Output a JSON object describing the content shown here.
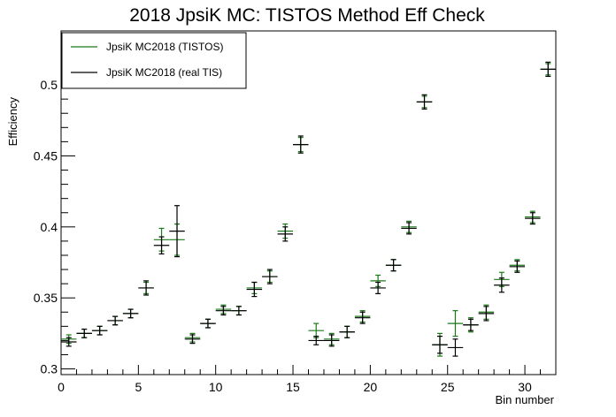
{
  "chart_data": {
    "type": "scatter",
    "title": "2018 JpsiK MC: TISTOS Method Eff Check",
    "xlabel": "Bin number",
    "ylabel": "Efficiency",
    "xlim": [
      0,
      32
    ],
    "ylim": [
      0.296,
      0.538
    ],
    "x_ticks": [
      0,
      5,
      10,
      15,
      20,
      25,
      30
    ],
    "y_ticks": [
      0.3,
      0.35,
      0.4,
      0.45,
      0.5
    ],
    "grid": false,
    "legend_position": "top-left",
    "x_error": 0.5,
    "series": [
      {
        "name": "JpsiK MC2018 (TISTOS)",
        "color": "#1a7a1a",
        "x": [
          0.5,
          1.5,
          2.5,
          3.5,
          4.5,
          5.5,
          6.5,
          7.5,
          8.5,
          9.5,
          10.5,
          11.5,
          12.5,
          13.5,
          14.5,
          15.5,
          16.5,
          17.5,
          18.5,
          19.5,
          20.5,
          21.5,
          22.5,
          23.5,
          24.5,
          25.5,
          26.5,
          27.5,
          28.5,
          29.5,
          30.5,
          31.5
        ],
        "y": [
          0.321,
          0.325,
          0.327,
          0.334,
          0.339,
          0.357,
          0.391,
          0.391,
          0.322,
          0.332,
          0.342,
          0.341,
          0.357,
          0.365,
          0.397,
          0.458,
          0.327,
          0.321,
          0.326,
          0.337,
          0.362,
          0.373,
          0.4,
          0.488,
          0.317,
          0.332,
          0.331,
          0.34,
          0.363,
          0.373,
          0.407,
          0.511
        ],
        "yerr": [
          0.003,
          0.003,
          0.003,
          0.003,
          0.003,
          0.004,
          0.008,
          0.011,
          0.003,
          0.003,
          0.003,
          0.003,
          0.004,
          0.004,
          0.005,
          0.005,
          0.005,
          0.004,
          0.004,
          0.004,
          0.004,
          0.004,
          0.004,
          0.004,
          0.008,
          0.009,
          0.005,
          0.005,
          0.005,
          0.004,
          0.004,
          0.004
        ]
      },
      {
        "name": "JpsiK MC2018 (real TIS)",
        "color": "#000000",
        "x": [
          0.5,
          1.5,
          2.5,
          3.5,
          4.5,
          5.5,
          6.5,
          7.5,
          8.5,
          9.5,
          10.5,
          11.5,
          12.5,
          13.5,
          14.5,
          15.5,
          16.5,
          17.5,
          18.5,
          19.5,
          20.5,
          21.5,
          22.5,
          23.5,
          24.5,
          25.5,
          26.5,
          27.5,
          28.5,
          29.5,
          30.5,
          31.5
        ],
        "y": [
          0.319,
          0.325,
          0.327,
          0.334,
          0.339,
          0.357,
          0.387,
          0.397,
          0.321,
          0.332,
          0.341,
          0.341,
          0.356,
          0.365,
          0.395,
          0.458,
          0.32,
          0.32,
          0.326,
          0.336,
          0.357,
          0.373,
          0.399,
          0.488,
          0.317,
          0.315,
          0.331,
          0.339,
          0.359,
          0.372,
          0.406,
          0.511
        ],
        "yerr": [
          0.003,
          0.003,
          0.003,
          0.003,
          0.003,
          0.005,
          0.006,
          0.018,
          0.003,
          0.003,
          0.003,
          0.003,
          0.005,
          0.005,
          0.005,
          0.006,
          0.003,
          0.004,
          0.004,
          0.004,
          0.004,
          0.004,
          0.004,
          0.005,
          0.006,
          0.006,
          0.004,
          0.005,
          0.005,
          0.004,
          0.004,
          0.005
        ]
      }
    ]
  }
}
